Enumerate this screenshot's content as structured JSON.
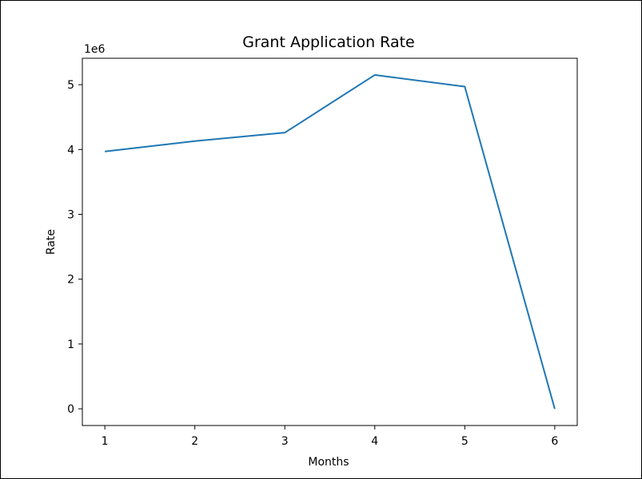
{
  "chart_data": {
    "type": "line",
    "title": "Grant Application Rate",
    "xlabel": "Months",
    "ylabel": "Rate",
    "y_offset_label": "1e6",
    "x": [
      1,
      2,
      3,
      4,
      5,
      6
    ],
    "series": [
      {
        "name": "Rate",
        "values": [
          3970000,
          4130000,
          4260000,
          5150000,
          4970000,
          0
        ],
        "color": "#1f77b4"
      }
    ],
    "xlim": [
      0.75,
      6.25
    ],
    "ylim": [
      -257500,
      5407500
    ],
    "x_ticks": [
      1,
      2,
      3,
      4,
      5,
      6
    ],
    "x_tick_labels": [
      "1",
      "2",
      "3",
      "4",
      "5",
      "6"
    ],
    "y_ticks": [
      0,
      1000000,
      2000000,
      3000000,
      4000000,
      5000000
    ],
    "y_tick_labels": [
      "0",
      "1",
      "2",
      "3",
      "4",
      "5"
    ],
    "grid": false,
    "legend": "none"
  }
}
